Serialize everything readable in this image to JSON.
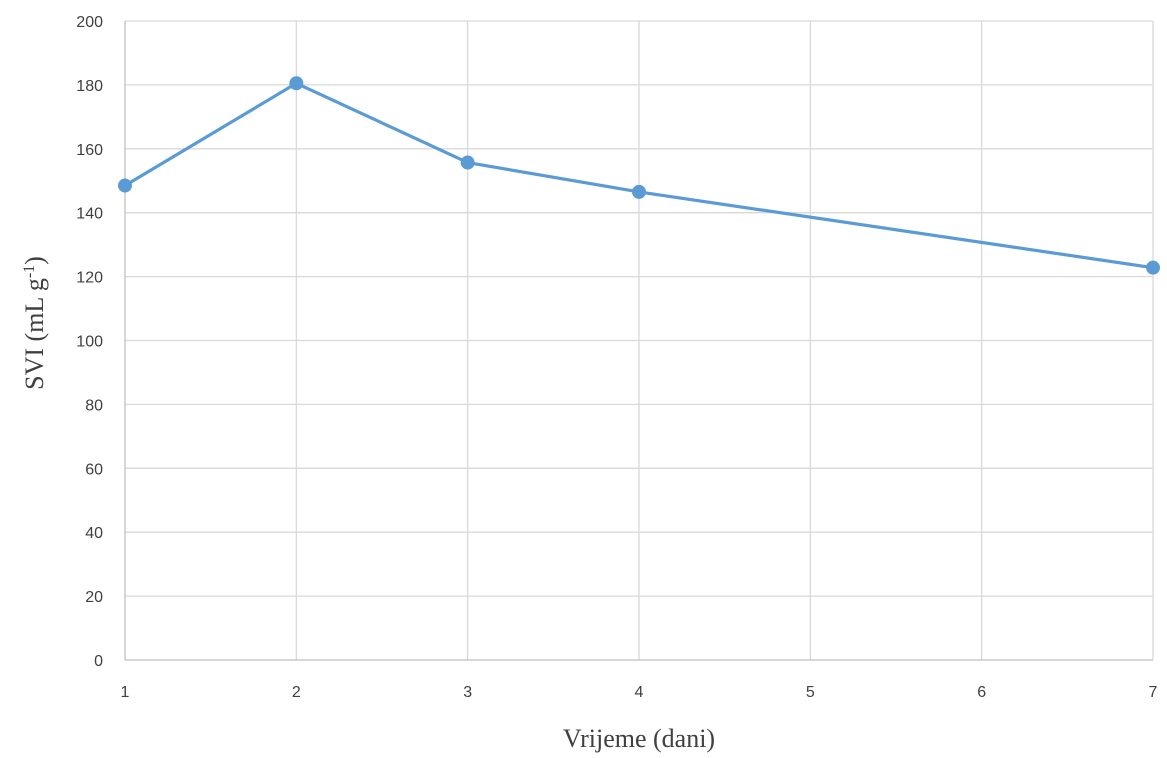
{
  "chart_data": {
    "type": "line",
    "x": [
      1,
      2,
      3,
      4,
      7
    ],
    "series": [
      {
        "values": [
          148.5,
          180.5,
          155.7,
          146.5,
          122.8
        ]
      }
    ],
    "xlabel": "Vrijeme (dani)",
    "ylabel": {
      "main": "SVI (mL g",
      "superscript": "-1",
      "close": ")"
    },
    "xlim": [
      1,
      7
    ],
    "ylim": [
      0,
      200
    ],
    "xticks": [
      1,
      2,
      3,
      4,
      5,
      6,
      7
    ],
    "yticks": [
      0,
      20,
      40,
      60,
      80,
      100,
      120,
      140,
      160,
      180,
      200
    ],
    "grid": true,
    "colors": {
      "series": "#5b9bd5",
      "grid": "#d9d9d9",
      "axis": "#bfbfbf",
      "text": "#404040"
    }
  }
}
